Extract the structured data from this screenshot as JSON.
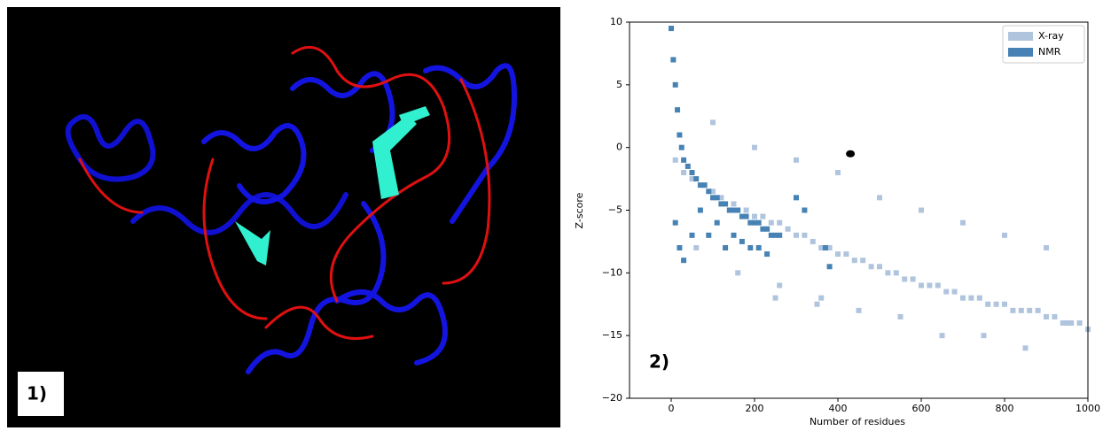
{
  "panel_labels": [
    "1)",
    "2)"
  ],
  "chart_data": {
    "type": "scatter",
    "xlabel": "Number of residues",
    "ylabel": "Z-score",
    "xlim": [
      -100,
      1000
    ],
    "xticks": [
      0,
      200,
      400,
      600,
      800,
      1000
    ],
    "ylim": [
      -20,
      10
    ],
    "yticks": [
      {
        "value": -20,
        "label": "−20"
      },
      {
        "value": -15,
        "label": "−15"
      },
      {
        "value": -10,
        "label": "−10"
      },
      {
        "value": -5,
        "label": "−5"
      },
      0,
      5,
      10
    ],
    "legend": "upper right",
    "series": [
      {
        "name": "X-ray",
        "color": "#b0c4de",
        "x": [
          10,
          30,
          50,
          80,
          100,
          120,
          150,
          180,
          200,
          220,
          240,
          260,
          280,
          300,
          320,
          340,
          360,
          380,
          400,
          420,
          440,
          460,
          480,
          500,
          520,
          540,
          560,
          580,
          600,
          620,
          640,
          660,
          680,
          700,
          720,
          740,
          760,
          780,
          800,
          820,
          840,
          860,
          880,
          900,
          920,
          940,
          960,
          980,
          1000,
          100,
          200,
          300,
          400,
          500,
          600,
          700,
          800,
          900,
          250,
          350,
          450,
          550,
          650,
          750,
          850,
          950,
          60,
          160,
          260,
          360
        ],
        "values": [
          -1,
          -2,
          -2.5,
          -3,
          -3.5,
          -4,
          -4.5,
          -5,
          -5.5,
          -5.5,
          -6,
          -6,
          -6.5,
          -7,
          -7,
          -7.5,
          -8,
          -8,
          -8.5,
          -8.5,
          -9,
          -9,
          -9.5,
          -9.5,
          -10,
          -10,
          -10.5,
          -10.5,
          -11,
          -11,
          -11,
          -11.5,
          -11.5,
          -12,
          -12,
          -12,
          -12.5,
          -12.5,
          -12.5,
          -13,
          -13,
          -13,
          -13,
          -13.5,
          -13.5,
          -14,
          -14,
          -14,
          -14.5,
          2,
          0,
          -1,
          -2,
          -4,
          -5,
          -6,
          -7,
          -8,
          -12,
          -12.5,
          -13,
          -13.5,
          -15,
          -15,
          -16,
          -14,
          -8,
          -10,
          -11,
          -12
        ]
      },
      {
        "name": "NMR",
        "color": "#4682b4",
        "x": [
          0,
          5,
          10,
          15,
          20,
          25,
          30,
          40,
          50,
          60,
          70,
          80,
          90,
          100,
          110,
          120,
          130,
          140,
          150,
          160,
          170,
          180,
          190,
          200,
          210,
          220,
          230,
          240,
          250,
          260,
          300,
          320,
          370,
          380,
          10,
          20,
          30,
          50,
          70,
          90,
          110,
          130,
          150,
          170,
          190,
          210,
          230
        ],
        "values": [
          9.5,
          7,
          5,
          3,
          1,
          0,
          -1,
          -1.5,
          -2,
          -2.5,
          -3,
          -3,
          -3.5,
          -4,
          -4,
          -4.5,
          -4.5,
          -5,
          -5,
          -5,
          -5.5,
          -5.5,
          -6,
          -6,
          -6,
          -6.5,
          -6.5,
          -7,
          -7,
          -7,
          -4,
          -5,
          -8,
          -9.5,
          -6,
          -8,
          -9,
          -7,
          -5,
          -7,
          -6,
          -8,
          -7,
          -7.5,
          -8,
          -8,
          -8.5
        ]
      }
    ],
    "highlight_point": {
      "x": 430,
      "y": -0.5,
      "color": "#000000"
    }
  }
}
